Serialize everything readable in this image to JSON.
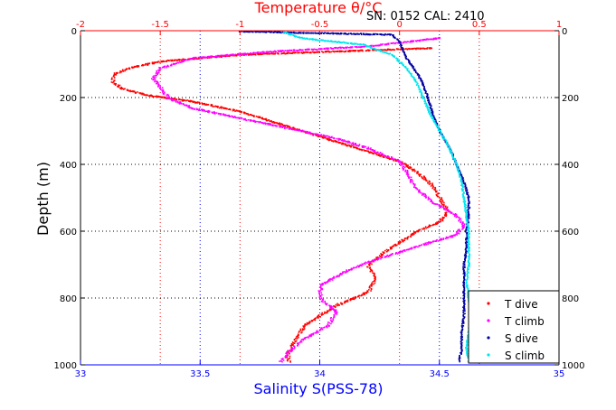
{
  "chart_data": {
    "type": "scatter",
    "serial_label": "SN: 0152  CAL: 2410",
    "top_axis": {
      "title": "Temperature θ/°C",
      "color": "#ff0000",
      "range": [
        -2,
        1
      ],
      "ticks": [
        -2,
        -1.5,
        -1,
        -0.5,
        0,
        0.5,
        1
      ],
      "tick_labels": [
        "-2",
        "-1.5",
        "-1",
        "-0.5",
        "0",
        "0.5",
        "1"
      ]
    },
    "bottom_axis": {
      "title": "Salinity S(PSS-78)",
      "color": "#0000ff",
      "range": [
        33,
        35
      ],
      "ticks": [
        33,
        33.5,
        34,
        34.5,
        35
      ],
      "tick_labels": [
        "33",
        "33.5",
        "34",
        "34.5",
        "35"
      ]
    },
    "y_axis": {
      "title": "Depth (m)",
      "range": [
        0,
        1000
      ],
      "reversed": true,
      "ticks": [
        0,
        200,
        400,
        600,
        800,
        1000
      ],
      "tick_labels": [
        "0",
        "200",
        "400",
        "600",
        "800",
        "1000"
      ]
    },
    "grid": true,
    "legend_position": "bottom-right",
    "series": [
      {
        "name": "T dive",
        "axis": "temperature",
        "color": "#ff0000",
        "points": [
          [
            0.2,
            50
          ],
          [
            -0.4,
            60
          ],
          [
            -1.0,
            70
          ],
          [
            -1.5,
            90
          ],
          [
            -1.7,
            110
          ],
          [
            -1.8,
            130
          ],
          [
            -1.8,
            150
          ],
          [
            -1.75,
            170
          ],
          [
            -1.6,
            190
          ],
          [
            -1.3,
            210
          ],
          [
            -1.0,
            240
          ],
          [
            -0.8,
            270
          ],
          [
            -0.6,
            300
          ],
          [
            -0.4,
            330
          ],
          [
            -0.2,
            360
          ],
          [
            0.0,
            390
          ],
          [
            0.1,
            420
          ],
          [
            0.2,
            460
          ],
          [
            0.25,
            500
          ],
          [
            0.3,
            540
          ],
          [
            0.25,
            570
          ],
          [
            0.1,
            600
          ],
          [
            0.0,
            630
          ],
          [
            -0.1,
            660
          ],
          [
            -0.2,
            700
          ],
          [
            -0.15,
            740
          ],
          [
            -0.2,
            780
          ],
          [
            -0.4,
            820
          ],
          [
            -0.5,
            850
          ],
          [
            -0.6,
            880
          ],
          [
            -0.65,
            920
          ],
          [
            -0.7,
            960
          ],
          [
            -0.7,
            990
          ]
        ]
      },
      {
        "name": "T climb",
        "axis": "temperature",
        "color": "#ff00ff",
        "points": [
          [
            0.25,
            20
          ],
          [
            -0.2,
            45
          ],
          [
            -0.8,
            60
          ],
          [
            -1.3,
            80
          ],
          [
            -1.5,
            110
          ],
          [
            -1.55,
            140
          ],
          [
            -1.5,
            170
          ],
          [
            -1.45,
            200
          ],
          [
            -1.3,
            230
          ],
          [
            -1.0,
            260
          ],
          [
            -0.7,
            290
          ],
          [
            -0.4,
            320
          ],
          [
            -0.2,
            350
          ],
          [
            0.0,
            390
          ],
          [
            0.05,
            430
          ],
          [
            0.1,
            470
          ],
          [
            0.2,
            510
          ],
          [
            0.35,
            550
          ],
          [
            0.4,
            580
          ],
          [
            0.35,
            610
          ],
          [
            0.2,
            630
          ],
          [
            0.0,
            660
          ],
          [
            -0.2,
            690
          ],
          [
            -0.35,
            720
          ],
          [
            -0.5,
            760
          ],
          [
            -0.5,
            800
          ],
          [
            -0.4,
            840
          ],
          [
            -0.45,
            880
          ],
          [
            -0.6,
            920
          ],
          [
            -0.7,
            960
          ],
          [
            -0.75,
            990
          ]
        ]
      },
      {
        "name": "S dive",
        "axis": "salinity",
        "color": "#0000a0",
        "points": [
          [
            33.66,
            0
          ],
          [
            34.3,
            10
          ],
          [
            34.33,
            30
          ],
          [
            34.36,
            80
          ],
          [
            34.4,
            120
          ],
          [
            34.43,
            160
          ],
          [
            34.45,
            200
          ],
          [
            34.47,
            250
          ],
          [
            34.5,
            300
          ],
          [
            34.54,
            350
          ],
          [
            34.57,
            400
          ],
          [
            34.6,
            450
          ],
          [
            34.62,
            500
          ],
          [
            34.62,
            550
          ],
          [
            34.61,
            600
          ],
          [
            34.61,
            650
          ],
          [
            34.6,
            700
          ],
          [
            34.6,
            750
          ],
          [
            34.6,
            800
          ],
          [
            34.6,
            850
          ],
          [
            34.59,
            900
          ],
          [
            34.59,
            950
          ],
          [
            34.58,
            990
          ]
        ]
      },
      {
        "name": "S climb",
        "axis": "salinity",
        "color": "#00e5ee",
        "points": [
          [
            33.84,
            0
          ],
          [
            33.92,
            20
          ],
          [
            34.18,
            40
          ],
          [
            34.3,
            70
          ],
          [
            34.36,
            110
          ],
          [
            34.4,
            150
          ],
          [
            34.43,
            200
          ],
          [
            34.46,
            250
          ],
          [
            34.5,
            300
          ],
          [
            34.54,
            350
          ],
          [
            34.57,
            400
          ],
          [
            34.59,
            450
          ],
          [
            34.6,
            500
          ],
          [
            34.61,
            550
          ],
          [
            34.62,
            600
          ],
          [
            34.62,
            650
          ],
          [
            34.62,
            700
          ],
          [
            34.61,
            750
          ],
          [
            34.62,
            800
          ],
          [
            34.63,
            850
          ],
          [
            34.62,
            900
          ],
          [
            34.61,
            950
          ],
          [
            34.62,
            990
          ]
        ]
      }
    ]
  }
}
